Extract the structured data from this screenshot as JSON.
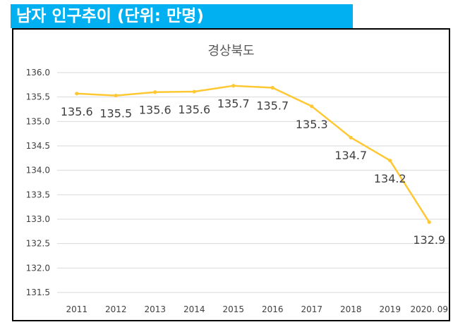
{
  "header": {
    "title": "남자 인구추이 (단위: 만명)"
  },
  "chart_data": {
    "type": "line",
    "title": "경상북도",
    "categories": [
      "2011",
      "2012",
      "2013",
      "2014",
      "2015",
      "2016",
      "2017",
      "2018",
      "2019",
      "2020. 09"
    ],
    "values": [
      135.57,
      135.53,
      135.6,
      135.61,
      135.73,
      135.69,
      135.31,
      134.67,
      134.2,
      132.94
    ],
    "data_labels": [
      "135.6",
      "135.5",
      "135.6",
      "135.6",
      "135.7",
      "135.7",
      "135.3",
      "134.7",
      "134.2",
      "132.9"
    ],
    "yticks": [
      "131.5",
      "132.0",
      "132.5",
      "133.0",
      "133.5",
      "134.0",
      "134.5",
      "135.0",
      "135.5",
      "136.0"
    ],
    "ylim": [
      131.5,
      136.0
    ],
    "xlabel": "",
    "ylabel": "",
    "grid": true,
    "legend": "none",
    "line_color": "#FFC832",
    "grid_color": "#D9D9D9"
  }
}
